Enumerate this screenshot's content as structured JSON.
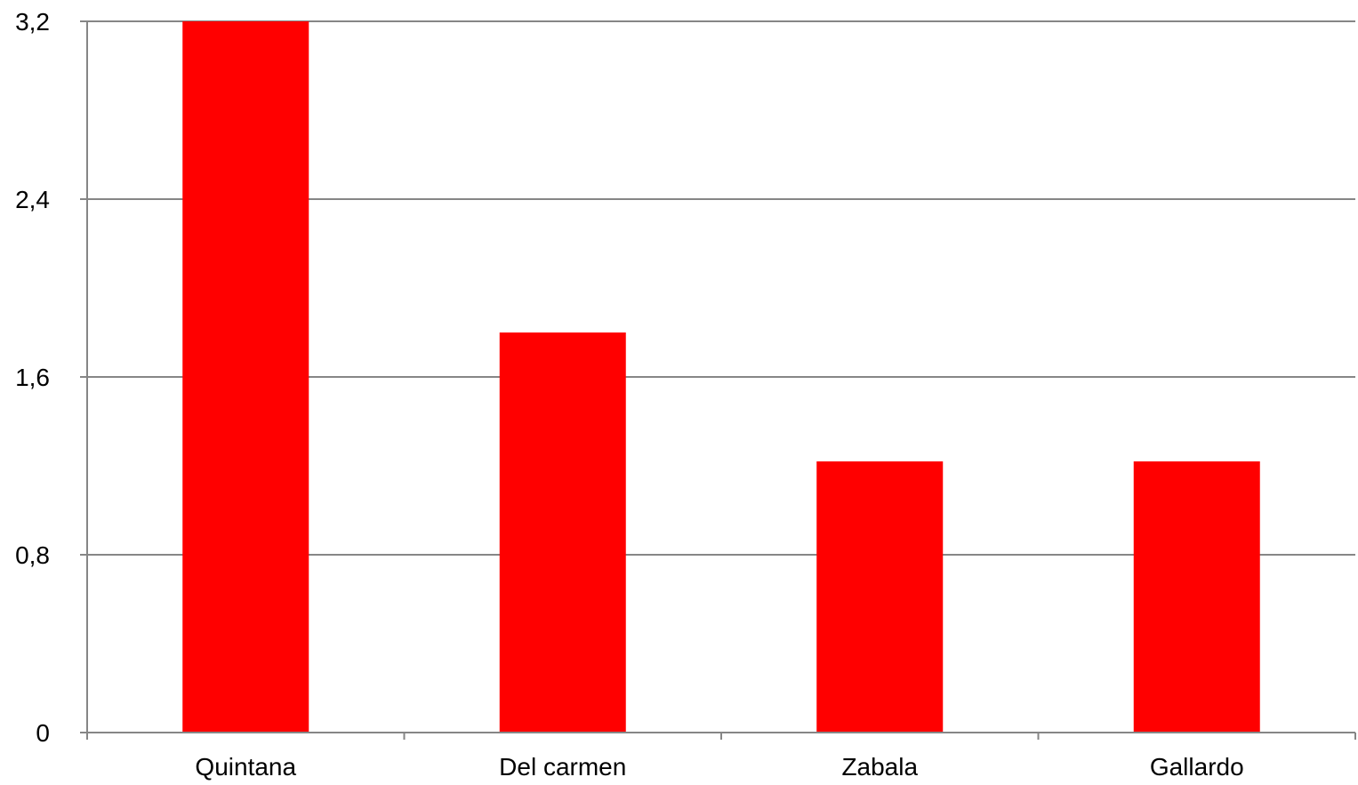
{
  "chart_data": {
    "type": "bar",
    "categories": [
      "Quintana",
      "Del carmen",
      "Zabala",
      "Gallardo"
    ],
    "values": [
      3.2,
      1.8,
      1.22,
      1.22
    ],
    "ylim": [
      0,
      3.2
    ],
    "yticks": [
      0,
      0.8,
      1.6,
      2.4,
      3.2
    ],
    "ytick_labels": [
      "0",
      "0,8",
      "1,6",
      "2,4",
      "3,2"
    ],
    "grid": true,
    "legend": "none",
    "bar_color": "#ff0000",
    "grid_color": "#868686",
    "axis_color": "#868686"
  }
}
